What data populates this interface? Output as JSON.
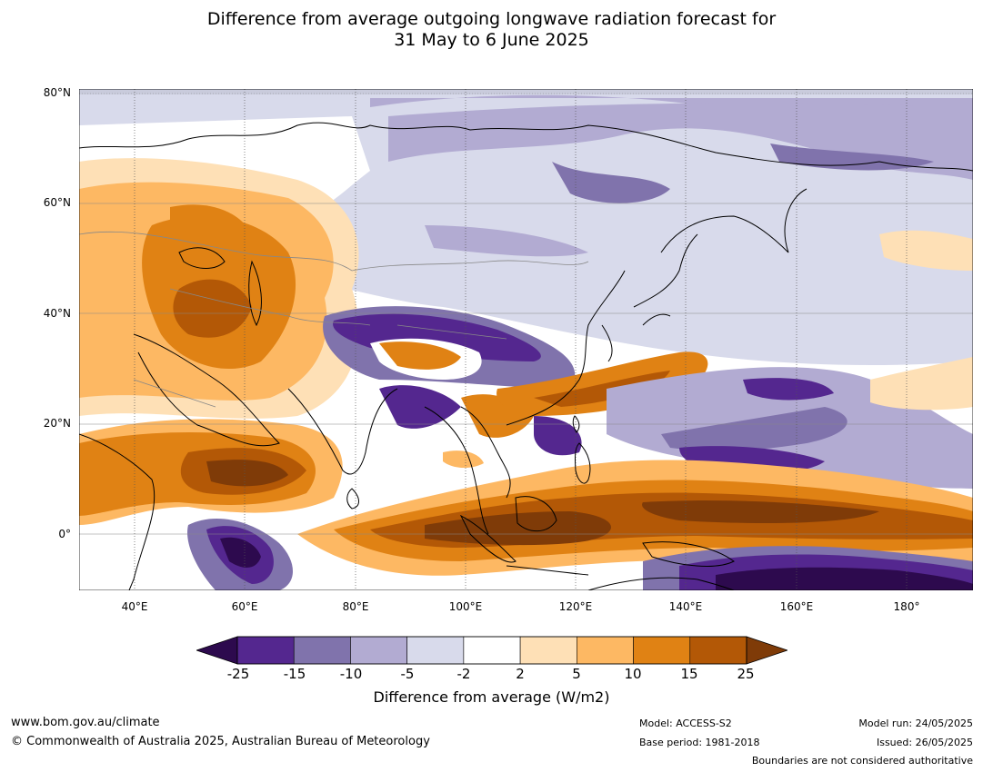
{
  "title_line1": "Difference from average outgoing longwave radiation forecast for",
  "title_line2": "31 May to 6 June 2025",
  "latitude_labels": [
    "80°N",
    "60°N",
    "40°N",
    "20°N",
    "0°"
  ],
  "longitude_labels": [
    "40°E",
    "60°E",
    "80°E",
    "100°E",
    "120°E",
    "140°E",
    "160°E",
    "180°"
  ],
  "colorbar": {
    "ticks": [
      "-25",
      "-15",
      "-10",
      "-5",
      "-2",
      "2",
      "5",
      "10",
      "15",
      "25"
    ],
    "colors": [
      "#2d0a4e",
      "#54278f",
      "#8073ac",
      "#b2abd2",
      "#d8daeb",
      "#ffffff",
      "#fee0b6",
      "#fdb863",
      "#e08214",
      "#b35806",
      "#7f3b08"
    ],
    "title": "Difference from average (W/m2)"
  },
  "footer": {
    "website": "www.bom.gov.au/climate",
    "copyright": "© Commonwealth of Australia 2025, Australian Bureau of Meteorology",
    "model": "Model: ACCESS-S2",
    "base_period": "Base period: 1981-2018",
    "model_run": "Model run: 24/05/2025",
    "issued": "Issued: 26/05/2025",
    "disclaimer": "Boundaries are not considered authoritative"
  }
}
